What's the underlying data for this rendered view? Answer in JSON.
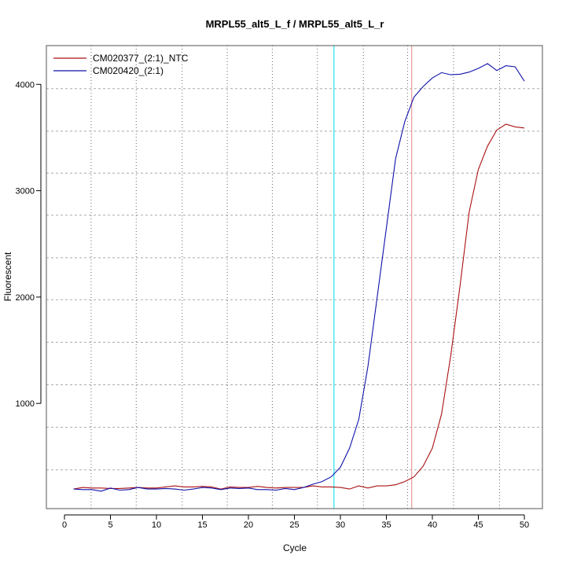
{
  "chart_data": {
    "type": "line",
    "title": "MRPL55_alt5_L_f / MRPL55_alt5_L_r",
    "xlabel": "Cycle",
    "ylabel": "Fluorescent",
    "xlim": [
      -1,
      52
    ],
    "ylim": [
      -10,
      4350
    ],
    "x_ticks": [
      0,
      5,
      10,
      15,
      20,
      25,
      30,
      35,
      40,
      45,
      50
    ],
    "y_ticks": [
      1000,
      2000,
      3000,
      4000
    ],
    "grid": true,
    "grid_x": [
      2.9,
      7.8,
      12.8,
      17.7,
      22.6,
      27.5,
      32.5,
      37.3,
      42.3,
      47.3
    ],
    "grid_y": [
      375,
      775,
      1175,
      1575,
      1975,
      2370,
      2770,
      3165,
      3560,
      3960
    ],
    "legend_position": "top-left",
    "threshold_lines": [
      {
        "cycle": 29.3,
        "color": "#33e6f0"
      },
      {
        "cycle": 37.75,
        "color": "#eba0a0"
      }
    ],
    "x": [
      1,
      2,
      3,
      4,
      5,
      6,
      7,
      8,
      9,
      10,
      11,
      12,
      13,
      14,
      15,
      16,
      17,
      18,
      19,
      20,
      21,
      22,
      23,
      24,
      25,
      26,
      27,
      28,
      29,
      30,
      31,
      32,
      33,
      34,
      35,
      36,
      37,
      38,
      39,
      40,
      41,
      42,
      43,
      44,
      45,
      46,
      47,
      48,
      49,
      50
    ],
    "series": [
      {
        "name": "CM020377_(2:1)_NTC",
        "color": "#aa1111",
        "values": [
          195,
          210,
          205,
          205,
          200,
          200,
          205,
          210,
          205,
          205,
          215,
          225,
          215,
          215,
          220,
          215,
          195,
          215,
          210,
          210,
          220,
          210,
          205,
          210,
          210,
          210,
          225,
          215,
          215,
          210,
          195,
          225,
          205,
          225,
          225,
          235,
          265,
          310,
          410,
          580,
          900,
          1450,
          2100,
          2800,
          3200,
          3420,
          3570,
          3625,
          3600,
          3590
        ]
      },
      {
        "name": "CM020420_(2:1)",
        "color": "#1111aa",
        "values": [
          195,
          190,
          190,
          175,
          205,
          185,
          190,
          210,
          195,
          195,
          200,
          195,
          185,
          195,
          210,
          205,
          190,
          205,
          200,
          205,
          190,
          190,
          185,
          200,
          190,
          210,
          240,
          265,
          310,
          400,
          580,
          850,
          1350,
          2000,
          2650,
          3300,
          3650,
          3880,
          3980,
          4060,
          4110,
          4090,
          4095,
          4115,
          4150,
          4195,
          4130,
          4175,
          4165,
          4030
        ]
      }
    ]
  }
}
